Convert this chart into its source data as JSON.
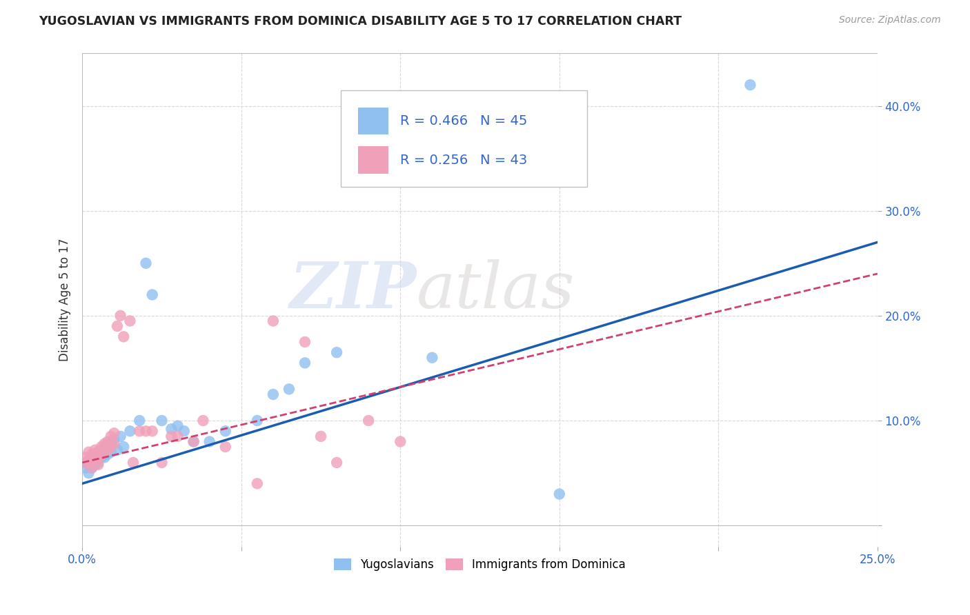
{
  "title": "YUGOSLAVIAN VS IMMIGRANTS FROM DOMINICA DISABILITY AGE 5 TO 17 CORRELATION CHART",
  "source": "Source: ZipAtlas.com",
  "ylabel": "Disability Age 5 to 17",
  "xlim": [
    0.0,
    0.25
  ],
  "ylim": [
    -0.02,
    0.45
  ],
  "yticks": [
    0.0,
    0.1,
    0.2,
    0.3,
    0.4
  ],
  "yticklabels_right": [
    "",
    "10.0%",
    "20.0%",
    "30.0%",
    "40.0%"
  ],
  "r_blue": 0.466,
  "n_blue": 45,
  "r_pink": 0.256,
  "n_pink": 43,
  "blue_color": "#90c0f0",
  "pink_color": "#f0a0b8",
  "line_blue_color": "#1a5cb0",
  "line_pink_color": "#d04070",
  "background_color": "#ffffff",
  "grid_color": "#d8d8d8",
  "watermark_zip": "ZIP",
  "watermark_atlas": "atlas",
  "blue_scatter_x": [
    0.001,
    0.001,
    0.002,
    0.002,
    0.002,
    0.003,
    0.003,
    0.003,
    0.004,
    0.004,
    0.004,
    0.005,
    0.005,
    0.005,
    0.006,
    0.006,
    0.007,
    0.007,
    0.008,
    0.008,
    0.009,
    0.009,
    0.01,
    0.011,
    0.012,
    0.013,
    0.015,
    0.018,
    0.02,
    0.022,
    0.025,
    0.028,
    0.03,
    0.032,
    0.035,
    0.04,
    0.045,
    0.055,
    0.06,
    0.065,
    0.07,
    0.08,
    0.11,
    0.15,
    0.21
  ],
  "blue_scatter_y": [
    0.06,
    0.055,
    0.062,
    0.058,
    0.05,
    0.065,
    0.06,
    0.055,
    0.068,
    0.062,
    0.058,
    0.07,
    0.065,
    0.06,
    0.072,
    0.065,
    0.075,
    0.065,
    0.078,
    0.068,
    0.08,
    0.07,
    0.082,
    0.072,
    0.085,
    0.075,
    0.09,
    0.1,
    0.25,
    0.22,
    0.1,
    0.092,
    0.095,
    0.09,
    0.08,
    0.08,
    0.09,
    0.1,
    0.125,
    0.13,
    0.155,
    0.165,
    0.16,
    0.03,
    0.42
  ],
  "pink_scatter_x": [
    0.001,
    0.001,
    0.002,
    0.002,
    0.003,
    0.003,
    0.003,
    0.004,
    0.004,
    0.005,
    0.005,
    0.005,
    0.006,
    0.006,
    0.007,
    0.007,
    0.008,
    0.008,
    0.009,
    0.009,
    0.01,
    0.01,
    0.011,
    0.012,
    0.013,
    0.015,
    0.016,
    0.018,
    0.02,
    0.022,
    0.025,
    0.028,
    0.03,
    0.035,
    0.038,
    0.045,
    0.055,
    0.06,
    0.07,
    0.075,
    0.08,
    0.09,
    0.1
  ],
  "pink_scatter_y": [
    0.065,
    0.06,
    0.07,
    0.062,
    0.068,
    0.06,
    0.055,
    0.072,
    0.065,
    0.07,
    0.063,
    0.058,
    0.075,
    0.068,
    0.078,
    0.07,
    0.08,
    0.072,
    0.085,
    0.075,
    0.088,
    0.078,
    0.19,
    0.2,
    0.18,
    0.195,
    0.06,
    0.09,
    0.09,
    0.09,
    0.06,
    0.085,
    0.085,
    0.08,
    0.1,
    0.075,
    0.04,
    0.195,
    0.175,
    0.085,
    0.06,
    0.1,
    0.08
  ],
  "blue_line_x0": 0.0,
  "blue_line_y0": 0.04,
  "blue_line_x1": 0.25,
  "blue_line_y1": 0.27,
  "pink_line_x0": 0.0,
  "pink_line_y0": 0.06,
  "pink_line_x1": 0.25,
  "pink_line_y1": 0.24
}
